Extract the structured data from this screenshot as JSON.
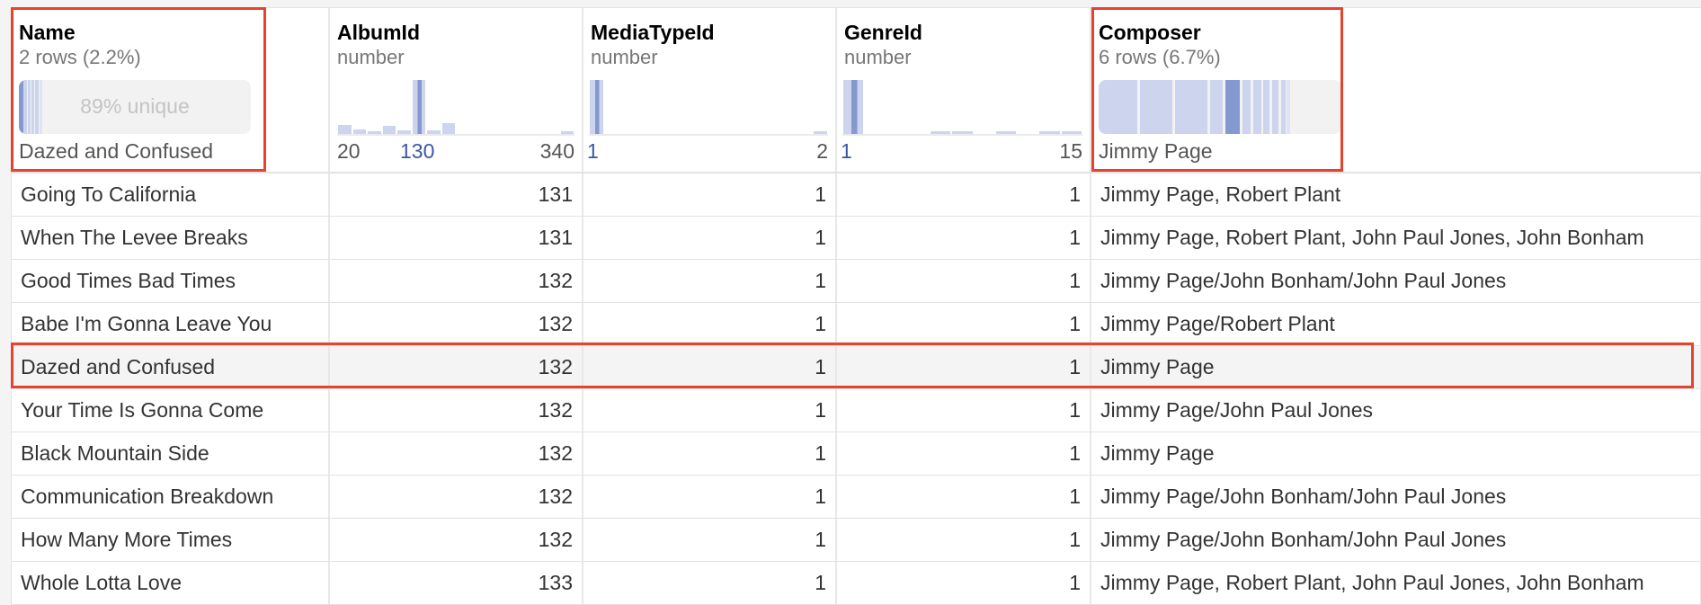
{
  "colors": {
    "accent_bar": "#cdd5ee",
    "accent_dark": "#8499d0",
    "highlight": "#e5432d",
    "link_tick": "#3a56a6"
  },
  "columns": [
    {
      "name": "Name",
      "subtitle": "2 rows (2.2%)",
      "unique_label": "89% unique",
      "unique_fraction": 0.89,
      "footer": "Dazed and Confused"
    },
    {
      "name": "AlbumId",
      "subtitle": "number",
      "ticks": [
        "20",
        "130",
        "340"
      ],
      "histogram": [
        0.17,
        0.08,
        0.05,
        0.15,
        0.06,
        1.0,
        0.07,
        0.2,
        0,
        0,
        0,
        0,
        0,
        0,
        0,
        0.03
      ]
    },
    {
      "name": "MediaTypeId",
      "subtitle": "number",
      "ticks": [
        "1",
        "2"
      ],
      "histogram": [
        1.0,
        0,
        0,
        0,
        0,
        0,
        0,
        0,
        0,
        0,
        0,
        0,
        0,
        0,
        0,
        0.03
      ]
    },
    {
      "name": "GenreId",
      "subtitle": "number",
      "ticks": [
        "1",
        "15"
      ],
      "histogram": [
        1.0,
        0,
        0,
        0,
        0.03,
        0.03,
        0,
        0.03,
        0,
        0.03,
        0.03
      ]
    },
    {
      "name": "Composer",
      "subtitle": "6 rows (6.7%)",
      "footer": "Jimmy Page"
    }
  ],
  "rows": [
    [
      "Going To California",
      "131",
      "1",
      "1",
      "Jimmy Page, Robert Plant"
    ],
    [
      "When The Levee Breaks",
      "131",
      "1",
      "1",
      "Jimmy Page, Robert Plant, John Paul Jones, John Bonham"
    ],
    [
      "Good Times Bad Times",
      "132",
      "1",
      "1",
      "Jimmy Page/John Bonham/John Paul Jones"
    ],
    [
      "Babe I'm Gonna Leave You",
      "132",
      "1",
      "1",
      "Jimmy Page/Robert Plant"
    ],
    [
      "Dazed and Confused",
      "132",
      "1",
      "1",
      "Jimmy Page"
    ],
    [
      "Your Time Is Gonna Come",
      "132",
      "1",
      "1",
      "Jimmy Page/John Paul Jones"
    ],
    [
      "Black Mountain Side",
      "132",
      "1",
      "1",
      "Jimmy Page"
    ],
    [
      "Communication Breakdown",
      "132",
      "1",
      "1",
      "Jimmy Page/John Bonham/John Paul Jones"
    ],
    [
      "How Many More Times",
      "132",
      "1",
      "1",
      "Jimmy Page/John Bonham/John Paul Jones"
    ],
    [
      "Whole Lotta Love",
      "133",
      "1",
      "1",
      "Jimmy Page, Robert Plant, John Paul Jones, John Bonham"
    ]
  ],
  "selected_row": 4
}
